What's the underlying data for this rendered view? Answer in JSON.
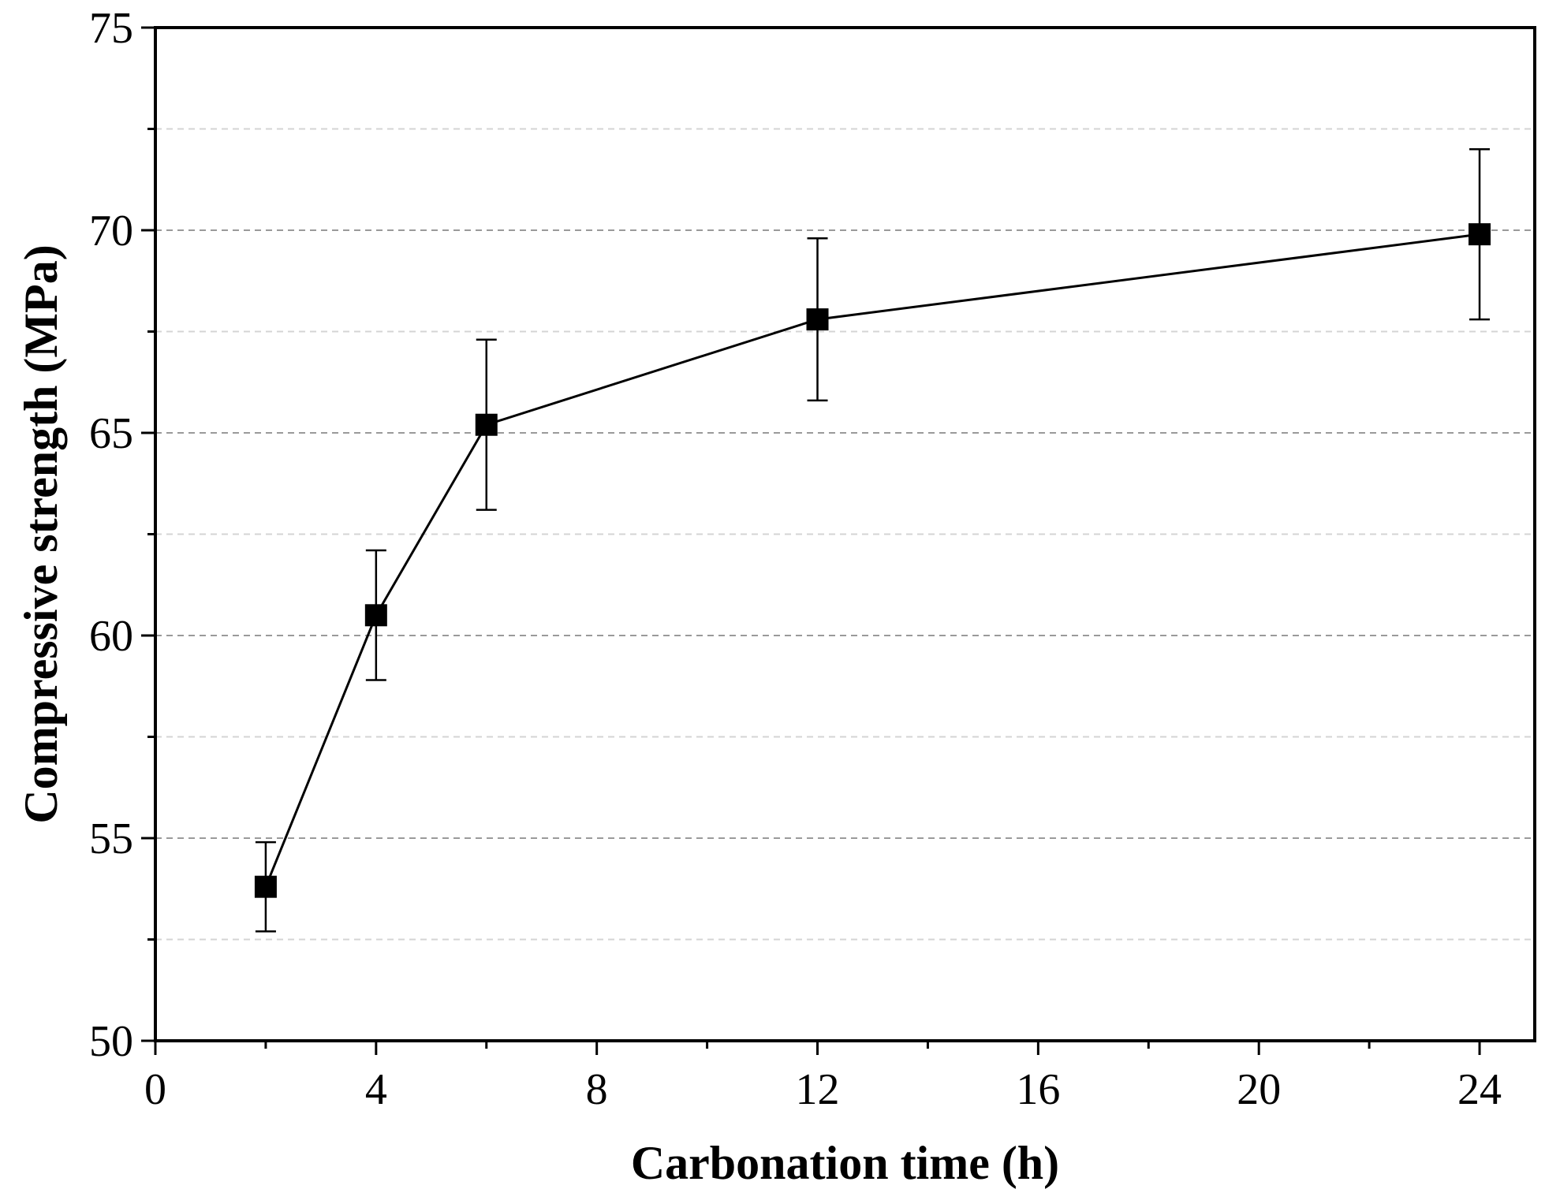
{
  "chart_data": {
    "type": "line",
    "title": "",
    "xlabel": "Carbonation time (h)",
    "ylabel": "Compressive strength (MPa)",
    "xlim": [
      0,
      25
    ],
    "ylim": [
      50,
      75
    ],
    "xticks": [
      0,
      4,
      8,
      12,
      16,
      20,
      24
    ],
    "xtick_labels": [
      "0",
      "4",
      "8",
      "12",
      "16",
      "20",
      "24"
    ],
    "yticks": [
      50,
      55,
      60,
      65,
      70,
      75
    ],
    "ytick_labels": [
      "50",
      "55",
      "60",
      "65",
      "70",
      "75"
    ],
    "y_gridlines": [
      52.5,
      55,
      57.5,
      60,
      62.5,
      65,
      67.5,
      70,
      72.5
    ],
    "series": [
      {
        "name": "Compressive strength",
        "marker": "square",
        "color": "#000000",
        "x": [
          2,
          4,
          6,
          12,
          24
        ],
        "y": [
          53.8,
          60.5,
          65.2,
          67.8,
          69.9
        ],
        "err": [
          1.1,
          1.6,
          2.1,
          2.0,
          2.1
        ]
      }
    ]
  }
}
